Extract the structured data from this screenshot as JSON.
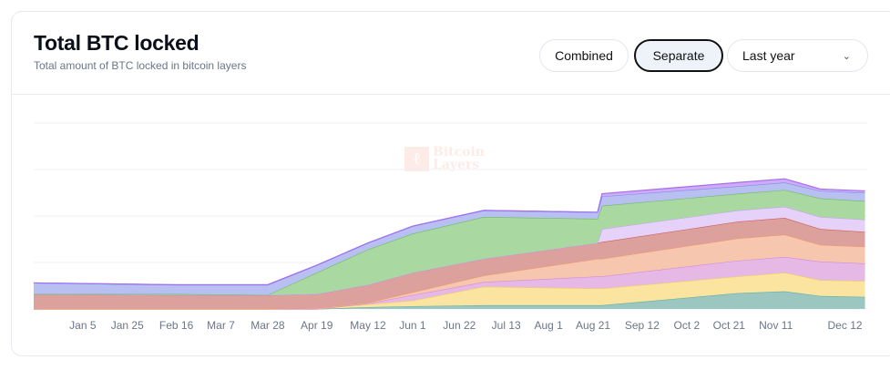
{
  "header": {
    "title": "Total BTC locked",
    "subtitle": "Total amount of BTC locked in bitcoin layers",
    "buttons": {
      "combined": "Combined",
      "separate": "Separate"
    },
    "selected_view": "Separate",
    "range_select": {
      "value": "Last year",
      "icon": "chevron-down-icon"
    }
  },
  "watermark": {
    "logo": "BL",
    "text_line1": "Bitcoin",
    "text_line2": "Layers"
  },
  "chart_data": {
    "type": "area",
    "stacked": true,
    "title": "",
    "xlabel": "",
    "ylabel": "",
    "grid": true,
    "y_tick_labels_shown": false,
    "ylim": [
      0,
      4
    ],
    "xlim": [
      "2023-12-14",
      "2024-12-22"
    ],
    "x_tick_labels": [
      {
        "date": "2024-01-05",
        "label": "Jan 5"
      },
      {
        "date": "2024-01-25",
        "label": "Jan 25"
      },
      {
        "date": "2024-02-16",
        "label": "Feb 16"
      },
      {
        "date": "2024-03-07",
        "label": "Mar 7"
      },
      {
        "date": "2024-03-28",
        "label": "Mar 28"
      },
      {
        "date": "2024-04-19",
        "label": "Apr 19"
      },
      {
        "date": "2024-05-12",
        "label": "May 12"
      },
      {
        "date": "2024-06-01",
        "label": "Jun 1"
      },
      {
        "date": "2024-06-22",
        "label": "Jun 22"
      },
      {
        "date": "2024-07-13",
        "label": "Jul 13"
      },
      {
        "date": "2024-08-01",
        "label": "Aug 1"
      },
      {
        "date": "2024-08-21",
        "label": "Aug 21"
      },
      {
        "date": "2024-09-12",
        "label": "Sep 12"
      },
      {
        "date": "2024-10-02",
        "label": "Oct 2"
      },
      {
        "date": "2024-10-21",
        "label": "Oct 21"
      },
      {
        "date": "2024-11-11",
        "label": "Nov 11"
      },
      {
        "date": "2024-12-12",
        "label": "Dec 12"
      }
    ],
    "x": [
      "2023-12-14",
      "2024-02-16",
      "2024-03-28",
      "2024-04-19",
      "2024-05-12",
      "2024-06-01",
      "2024-07-03",
      "2024-08-23",
      "2024-08-25",
      "2024-10-25",
      "2024-11-15",
      "2024-12-01",
      "2024-12-21"
    ],
    "series": [
      {
        "color": "#9cc7c0",
        "stroke": "#5fb0a6",
        "values": [
          0,
          0,
          0,
          0,
          0.04,
          0.06,
          0.08,
          0.08,
          0.08,
          0.34,
          0.38,
          0.28,
          0.26
        ]
      },
      {
        "color": "#fbe4a0",
        "stroke": "#f2cf5a",
        "values": [
          0,
          0,
          0,
          0,
          0.06,
          0.12,
          0.4,
          0.36,
          0.36,
          0.36,
          0.4,
          0.34,
          0.34
        ]
      },
      {
        "color": "#e5b8e6",
        "stroke": "#d68ad8",
        "values": [
          0,
          0,
          0,
          0,
          0.02,
          0.12,
          0.1,
          0.26,
          0.26,
          0.34,
          0.34,
          0.4,
          0.38
        ]
      },
      {
        "color": "#f6c7ae",
        "stroke": "#ec9a6e",
        "values": [
          0,
          0,
          0,
          0.02,
          0.02,
          0.06,
          0.14,
          0.38,
          0.38,
          0.48,
          0.48,
          0.36,
          0.36
        ]
      },
      {
        "color": "#dca19c",
        "stroke": "#c9605a",
        "values": [
          0.32,
          0.3,
          0.3,
          0.3,
          0.38,
          0.42,
          0.36,
          0.34,
          0.36,
          0.36,
          0.36,
          0.34,
          0.32
        ]
      },
      {
        "color": "#e6d2f9",
        "stroke": "#c7a4f0",
        "values": [
          0,
          0,
          0,
          0,
          0,
          0,
          0,
          0,
          0.28,
          0.24,
          0.24,
          0.26,
          0.26
        ]
      },
      {
        "color": "#a9d8a1",
        "stroke": "#6dbb62",
        "values": [
          0,
          0.02,
          0,
          0.46,
          0.76,
          0.84,
          0.9,
          0.52,
          0.5,
          0.36,
          0.36,
          0.4,
          0.4
        ]
      },
      {
        "color": "#b7c0f1",
        "stroke": "#7d8ee6",
        "values": [
          0.24,
          0.2,
          0.22,
          0.16,
          0.14,
          0.16,
          0.14,
          0.14,
          0.2,
          0.16,
          0.16,
          0.16,
          0.18
        ]
      },
      {
        "color": "#cfaaf6",
        "stroke": "#a56ef0",
        "values": [
          0,
          0,
          0,
          0,
          0,
          0,
          0,
          0,
          0.06,
          0.08,
          0.08,
          0.04,
          0.04
        ]
      }
    ]
  }
}
